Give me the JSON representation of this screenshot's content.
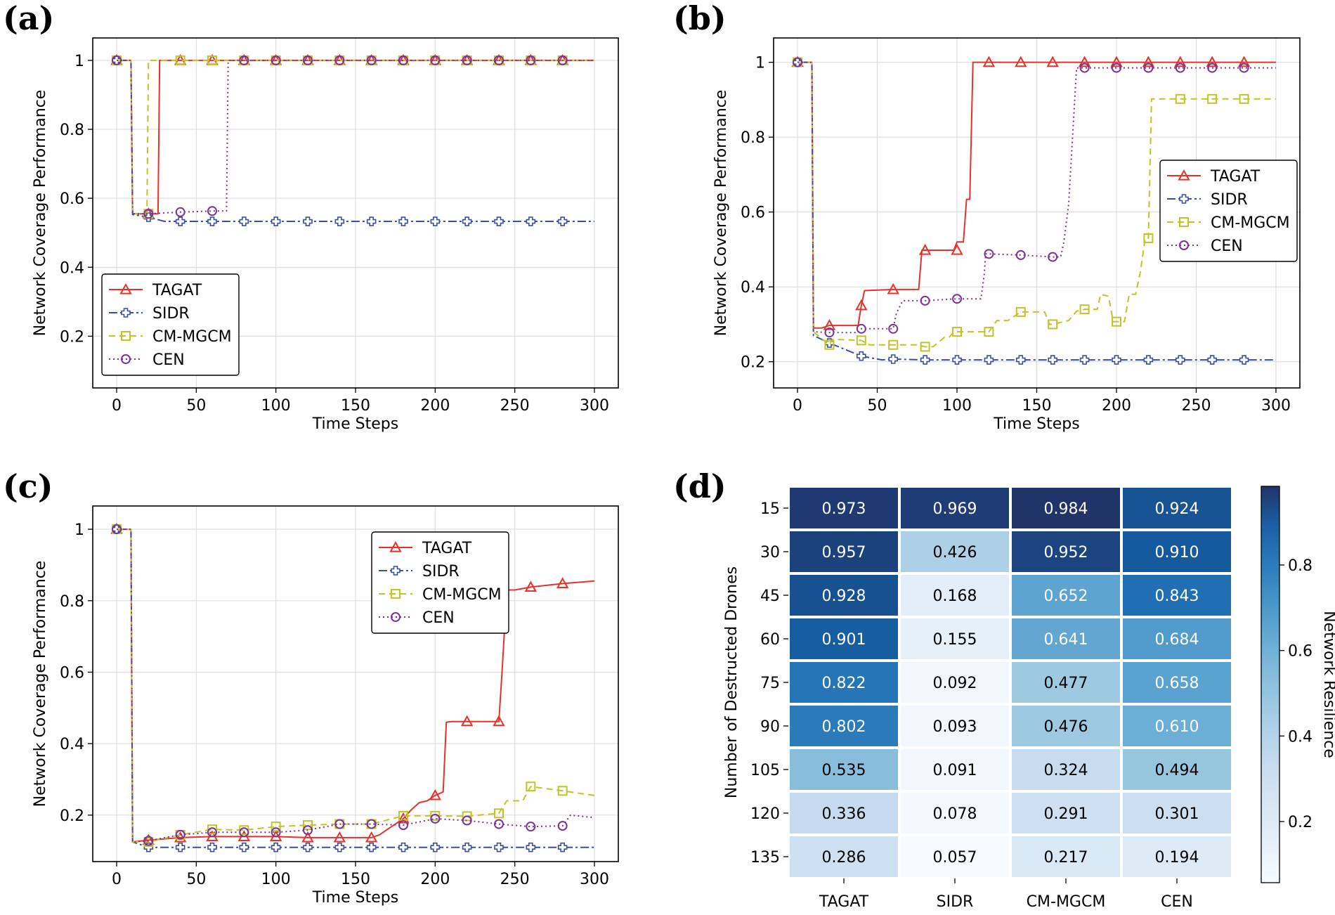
{
  "chart_data": [
    {
      "panel": "(a)",
      "type": "line",
      "xlabel": "Time Steps",
      "ylabel": "Network Coverage Performance",
      "xlim": [
        -15,
        315
      ],
      "ylim": [
        0.05,
        1.065
      ],
      "xticks": [
        0,
        50,
        100,
        150,
        200,
        250,
        300
      ],
      "yticks": [
        0.2,
        0.4,
        0.6,
        0.8,
        1.0
      ],
      "legend": "bottom-left",
      "grid": true,
      "series": [
        {
          "name": "TAGAT",
          "color": "#e8312b",
          "dash": "",
          "marker": "triangle",
          "x": [
            0,
            9,
            10,
            20,
            26,
            27,
            300
          ],
          "y": [
            1.0,
            1.0,
            0.555,
            0.555,
            0.555,
            1.0,
            1.0
          ],
          "mx": [
            0,
            20,
            40,
            60,
            80,
            100,
            120,
            140,
            160,
            180,
            200,
            220,
            240,
            260,
            280
          ],
          "my": [
            1.0,
            0.555,
            1.0,
            1.0,
            1.0,
            1.0,
            1.0,
            1.0,
            1.0,
            1.0,
            1.0,
            1.0,
            1.0,
            1.0,
            1.0
          ]
        },
        {
          "name": "SIDR",
          "color": "#3a4fa2",
          "dash": "12 4 3 4",
          "marker": "plus",
          "x": [
            0,
            9,
            10,
            20,
            30,
            300
          ],
          "y": [
            1.0,
            1.0,
            0.553,
            0.545,
            0.533,
            0.533
          ],
          "mx": [
            0,
            20,
            40,
            60,
            80,
            100,
            120,
            140,
            160,
            180,
            200,
            220,
            240,
            260,
            280
          ],
          "my": [
            1.0,
            0.545,
            0.533,
            0.533,
            0.533,
            0.533,
            0.533,
            0.533,
            0.533,
            0.533,
            0.533,
            0.533,
            0.533,
            0.533,
            0.533
          ]
        },
        {
          "name": "CM-MGCM",
          "color": "#c3c327",
          "dash": "9 6",
          "marker": "square",
          "x": [
            0,
            9,
            10,
            19,
            20,
            300
          ],
          "y": [
            1.0,
            1.0,
            0.555,
            0.555,
            1.0,
            1.0
          ],
          "mx": [
            0,
            20,
            40,
            60,
            80,
            100,
            120,
            140,
            160,
            180,
            200,
            220,
            240,
            260,
            280
          ],
          "my": [
            1.0,
            0.555,
            1.0,
            1.0,
            1.0,
            1.0,
            1.0,
            1.0,
            1.0,
            1.0,
            1.0,
            1.0,
            1.0,
            1.0,
            1.0
          ]
        },
        {
          "name": "CEN",
          "color": "#7b3394",
          "dash": "2 4",
          "marker": "circle",
          "x": [
            0,
            9,
            10,
            20,
            40,
            60,
            69,
            70,
            300
          ],
          "y": [
            1.0,
            1.0,
            0.555,
            0.555,
            0.56,
            0.563,
            0.563,
            1.0,
            1.0
          ],
          "mx": [
            0,
            20,
            40,
            60,
            80,
            100,
            120,
            140,
            160,
            180,
            200,
            220,
            240,
            260,
            280
          ],
          "my": [
            1.0,
            0.555,
            0.56,
            0.563,
            1.0,
            1.0,
            1.0,
            1.0,
            1.0,
            1.0,
            1.0,
            1.0,
            1.0,
            1.0,
            1.0
          ]
        }
      ]
    },
    {
      "panel": "(b)",
      "type": "line",
      "xlabel": "Time Steps",
      "ylabel": "Network Coverage Performance",
      "xlim": [
        -15,
        315
      ],
      "ylim": [
        0.13,
        1.065
      ],
      "xticks": [
        0,
        50,
        100,
        150,
        200,
        250,
        300
      ],
      "yticks": [
        0.2,
        0.4,
        0.6,
        0.8,
        1.0
      ],
      "legend": "center-right",
      "grid": true,
      "series": [
        {
          "name": "TAGAT",
          "color": "#e8312b",
          "dash": "",
          "marker": "triangle",
          "x": [
            0,
            9,
            10,
            15,
            20,
            38,
            40,
            42,
            60,
            76,
            78,
            80,
            98,
            100,
            104,
            106,
            108,
            110,
            300
          ],
          "y": [
            1.0,
            1.0,
            0.29,
            0.29,
            0.297,
            0.297,
            0.35,
            0.39,
            0.393,
            0.393,
            0.498,
            0.498,
            0.498,
            0.52,
            0.52,
            0.634,
            0.634,
            1.0,
            1.0
          ],
          "mx": [
            0,
            20,
            40,
            60,
            80,
            100,
            120,
            140,
            160,
            180,
            200,
            220,
            240,
            260,
            280
          ],
          "my": [
            1.0,
            0.297,
            0.35,
            0.393,
            0.498,
            0.498,
            1.0,
            1.0,
            1.0,
            1.0,
            1.0,
            1.0,
            1.0,
            1.0,
            1.0
          ]
        },
        {
          "name": "SIDR",
          "color": "#3a4fa2",
          "dash": "12 4 3 4",
          "marker": "plus",
          "x": [
            0,
            9,
            10,
            20,
            40,
            53,
            60,
            80,
            300
          ],
          "y": [
            1.0,
            1.0,
            0.27,
            0.25,
            0.215,
            0.205,
            0.207,
            0.205,
            0.205
          ],
          "mx": [
            0,
            20,
            40,
            60,
            80,
            100,
            120,
            140,
            160,
            180,
            200,
            220,
            240,
            260,
            280
          ],
          "my": [
            1.0,
            0.25,
            0.215,
            0.207,
            0.205,
            0.205,
            0.205,
            0.205,
            0.205,
            0.205,
            0.205,
            0.205,
            0.205,
            0.205,
            0.205
          ]
        },
        {
          "name": "CM-MGCM",
          "color": "#c3c327",
          "dash": "9 6",
          "marker": "square",
          "x": [
            0,
            9,
            10,
            20,
            22,
            40,
            45,
            60,
            75,
            80,
            85,
            92,
            95,
            98,
            100,
            115,
            120,
            125,
            132,
            140,
            155,
            158,
            160,
            170,
            175,
            180,
            188,
            190,
            195,
            198,
            200,
            205,
            208,
            212,
            215,
            218,
            220,
            222,
            300
          ],
          "y": [
            1.0,
            1.0,
            0.28,
            0.245,
            0.26,
            0.257,
            0.245,
            0.245,
            0.245,
            0.24,
            0.24,
            0.265,
            0.265,
            0.28,
            0.28,
            0.28,
            0.28,
            0.31,
            0.31,
            0.333,
            0.333,
            0.3,
            0.3,
            0.31,
            0.335,
            0.34,
            0.34,
            0.38,
            0.375,
            0.307,
            0.307,
            0.307,
            0.38,
            0.38,
            0.44,
            0.53,
            0.53,
            0.902,
            0.902
          ],
          "mx": [
            0,
            20,
            40,
            60,
            80,
            100,
            120,
            140,
            160,
            180,
            200,
            220,
            240,
            260,
            280
          ],
          "my": [
            1.0,
            0.245,
            0.257,
            0.245,
            0.24,
            0.28,
            0.28,
            0.333,
            0.3,
            0.34,
            0.307,
            0.53,
            0.902,
            0.902,
            0.902
          ]
        },
        {
          "name": "CEN",
          "color": "#7b3394",
          "dash": "2 4",
          "marker": "circle",
          "x": [
            0,
            9,
            10,
            20,
            38,
            40,
            60,
            62,
            66,
            80,
            100,
            115,
            117,
            118,
            120,
            140,
            160,
            165,
            167,
            170,
            173,
            175,
            180,
            300
          ],
          "y": [
            1.0,
            1.0,
            0.28,
            0.278,
            0.278,
            0.288,
            0.288,
            0.33,
            0.363,
            0.363,
            0.368,
            0.368,
            0.43,
            0.488,
            0.488,
            0.485,
            0.48,
            0.48,
            0.52,
            0.62,
            0.84,
            0.985,
            0.985,
            0.985
          ],
          "mx": [
            0,
            20,
            40,
            60,
            80,
            100,
            120,
            140,
            160,
            180,
            200,
            220,
            240,
            260,
            280
          ],
          "my": [
            1.0,
            0.278,
            0.288,
            0.288,
            0.363,
            0.368,
            0.488,
            0.485,
            0.48,
            0.985,
            0.985,
            0.985,
            0.985,
            0.985,
            0.985
          ]
        }
      ]
    },
    {
      "panel": "(c)",
      "type": "line",
      "xlabel": "Time Steps",
      "ylabel": "Network Coverage Performance",
      "xlim": [
        -15,
        315
      ],
      "ylim": [
        0.07,
        1.065
      ],
      "xticks": [
        0,
        50,
        100,
        150,
        200,
        250,
        300
      ],
      "yticks": [
        0.2,
        0.4,
        0.6,
        0.8,
        1.0
      ],
      "legend": "top-right",
      "grid": true,
      "series": [
        {
          "name": "TAGAT",
          "color": "#e8312b",
          "dash": "",
          "marker": "triangle",
          "x": [
            0,
            9,
            10,
            20,
            40,
            60,
            80,
            100,
            120,
            140,
            160,
            165,
            170,
            175,
            180,
            185,
            190,
            195,
            200,
            205,
            207,
            210,
            220,
            240,
            242,
            245,
            250,
            260,
            280,
            300
          ],
          "y": [
            1.0,
            1.0,
            0.125,
            0.13,
            0.137,
            0.14,
            0.14,
            0.14,
            0.137,
            0.137,
            0.137,
            0.145,
            0.16,
            0.175,
            0.19,
            0.215,
            0.235,
            0.24,
            0.255,
            0.265,
            0.46,
            0.462,
            0.462,
            0.462,
            0.6,
            0.83,
            0.83,
            0.838,
            0.848,
            0.855
          ],
          "mx": [
            0,
            20,
            40,
            60,
            80,
            100,
            120,
            140,
            160,
            180,
            200,
            220,
            240,
            260,
            280
          ],
          "my": [
            1.0,
            0.13,
            0.137,
            0.14,
            0.14,
            0.14,
            0.137,
            0.137,
            0.137,
            0.19,
            0.255,
            0.462,
            0.462,
            0.838,
            0.848
          ]
        },
        {
          "name": "SIDR",
          "color": "#3a4fa2",
          "dash": "12 4 3 4",
          "marker": "plus",
          "x": [
            0,
            9,
            10,
            20,
            300
          ],
          "y": [
            1.0,
            1.0,
            0.125,
            0.11,
            0.11
          ],
          "mx": [
            0,
            20,
            40,
            60,
            80,
            100,
            120,
            140,
            160,
            180,
            200,
            220,
            240,
            260,
            280
          ],
          "my": [
            1.0,
            0.11,
            0.11,
            0.11,
            0.11,
            0.11,
            0.11,
            0.11,
            0.11,
            0.11,
            0.11,
            0.11,
            0.11,
            0.11,
            0.11
          ]
        },
        {
          "name": "CM-MGCM",
          "color": "#c3c327",
          "dash": "9 6",
          "marker": "square",
          "x": [
            0,
            9,
            10,
            20,
            40,
            60,
            80,
            100,
            120,
            140,
            160,
            180,
            200,
            220,
            240,
            245,
            250,
            255,
            260,
            280,
            300
          ],
          "y": [
            1.0,
            1.0,
            0.125,
            0.125,
            0.145,
            0.16,
            0.158,
            0.168,
            0.172,
            0.175,
            0.175,
            0.198,
            0.198,
            0.197,
            0.205,
            0.24,
            0.24,
            0.24,
            0.28,
            0.268,
            0.255
          ],
          "mx": [
            0,
            20,
            40,
            60,
            80,
            100,
            120,
            140,
            160,
            180,
            200,
            220,
            240,
            260,
            280
          ],
          "my": [
            1.0,
            0.125,
            0.145,
            0.16,
            0.158,
            0.168,
            0.172,
            0.175,
            0.175,
            0.198,
            0.198,
            0.197,
            0.205,
            0.28,
            0.268
          ]
        },
        {
          "name": "CEN",
          "color": "#7b3394",
          "dash": "2 4",
          "marker": "circle",
          "x": [
            0,
            9,
            10,
            20,
            40,
            60,
            80,
            100,
            120,
            140,
            160,
            180,
            200,
            220,
            240,
            260,
            280,
            285,
            300
          ],
          "y": [
            1.0,
            1.0,
            0.125,
            0.128,
            0.145,
            0.152,
            0.152,
            0.152,
            0.158,
            0.175,
            0.175,
            0.172,
            0.19,
            0.185,
            0.175,
            0.168,
            0.17,
            0.2,
            0.193
          ],
          "mx": [
            0,
            20,
            40,
            60,
            80,
            100,
            120,
            140,
            160,
            180,
            200,
            220,
            240,
            260,
            280
          ],
          "my": [
            1.0,
            0.128,
            0.145,
            0.152,
            0.152,
            0.152,
            0.158,
            0.175,
            0.175,
            0.172,
            0.19,
            0.185,
            0.175,
            0.168,
            0.17
          ]
        }
      ]
    },
    {
      "panel": "(d)",
      "type": "heatmap",
      "ylabel": "Number of Destructed Drones",
      "colorbar_label": "Network Resilience",
      "colorbar_range": [
        0.057,
        0.984
      ],
      "colorbar_ticks": [
        0.2,
        0.4,
        0.6,
        0.8
      ],
      "columns": [
        "TAGAT",
        "SIDR",
        "CM-MGCM",
        "CEN"
      ],
      "rows": [
        "15",
        "30",
        "45",
        "60",
        "75",
        "90",
        "105",
        "120",
        "135"
      ],
      "values": [
        [
          0.973,
          0.969,
          0.984,
          0.924
        ],
        [
          0.957,
          0.426,
          0.952,
          0.91
        ],
        [
          0.928,
          0.168,
          0.652,
          0.843
        ],
        [
          0.901,
          0.155,
          0.641,
          0.684
        ],
        [
          0.822,
          0.092,
          0.477,
          0.658
        ],
        [
          0.802,
          0.093,
          0.476,
          0.61
        ],
        [
          0.535,
          0.091,
          0.324,
          0.494
        ],
        [
          0.336,
          0.078,
          0.291,
          0.301
        ],
        [
          0.286,
          0.057,
          0.217,
          0.194
        ]
      ],
      "labels": [
        [
          "0.973",
          "0.969",
          "0.984",
          "0.924"
        ],
        [
          "0.957",
          "0.426",
          "0.952",
          "0.910"
        ],
        [
          "0.928",
          "0.168",
          "0.652",
          "0.843"
        ],
        [
          "0.901",
          "0.155",
          "0.641",
          "0.684"
        ],
        [
          "0.822",
          "0.092",
          "0.477",
          "0.658"
        ],
        [
          "0.802",
          "0.093",
          "0.476",
          "0.610"
        ],
        [
          "0.535",
          "0.091",
          "0.324",
          "0.494"
        ],
        [
          "0.336",
          "0.078",
          "0.291",
          "0.301"
        ],
        [
          "0.286",
          "0.057",
          "0.217",
          "0.194"
        ]
      ]
    }
  ]
}
